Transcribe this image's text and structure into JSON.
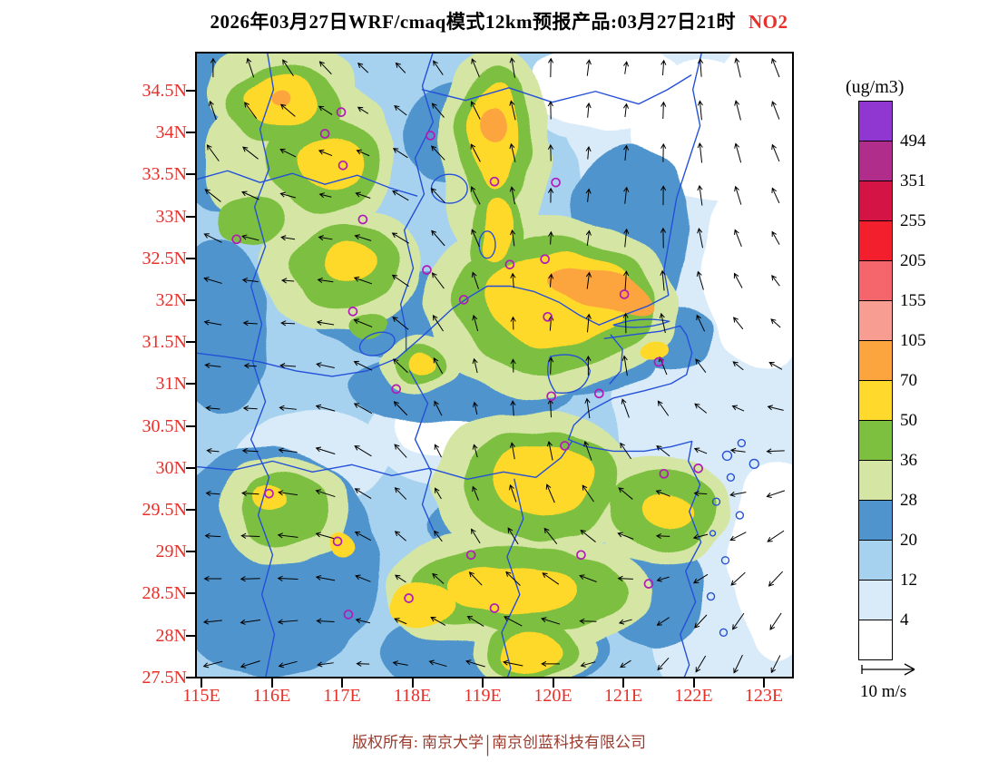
{
  "title": {
    "main": "2026年03月27日WRF/cmaq模式12km预报产品:03月27日21时",
    "pollutant": "NO2"
  },
  "legend": {
    "units": "(ug/m3)",
    "levels": [
      "494",
      "351",
      "255",
      "205",
      "155",
      "105",
      "70",
      "50",
      "36",
      "28",
      "20",
      "12",
      "4"
    ],
    "colors": [
      "#9137d1",
      "#b12d8c",
      "#d41444",
      "#f31f2c",
      "#f4656c",
      "#f79d92",
      "#fca43e",
      "#ffd92b",
      "#7dbf3f",
      "#d5e6a4",
      "#4f94cd",
      "#a6d2ef",
      "#d9ebf9",
      "#ffffff"
    ]
  },
  "axes": {
    "lat_labels": [
      "34.5N",
      "34N",
      "33.5N",
      "33N",
      "32.5N",
      "32N",
      "31.5N",
      "31N",
      "30.5N",
      "30N",
      "29.5N",
      "29N",
      "28.5N",
      "28N",
      "27.5N"
    ],
    "lon_labels": [
      "115E",
      "116E",
      "117E",
      "118E",
      "119E",
      "120E",
      "121E",
      "122E",
      "123E"
    ]
  },
  "wind_reference": {
    "label": "10 m/s"
  },
  "footer": {
    "left": "版权所有: 南京大学",
    "separator": "|",
    "right": "南京创蓝科技有限公司"
  },
  "colors": {
    "axis_label": "#e8302a",
    "title_accent": "#e8302a",
    "boundary": "#2450d8",
    "marker": "#b21bb8",
    "footer_text": "#9b3b2e",
    "frame": "#000000"
  }
}
